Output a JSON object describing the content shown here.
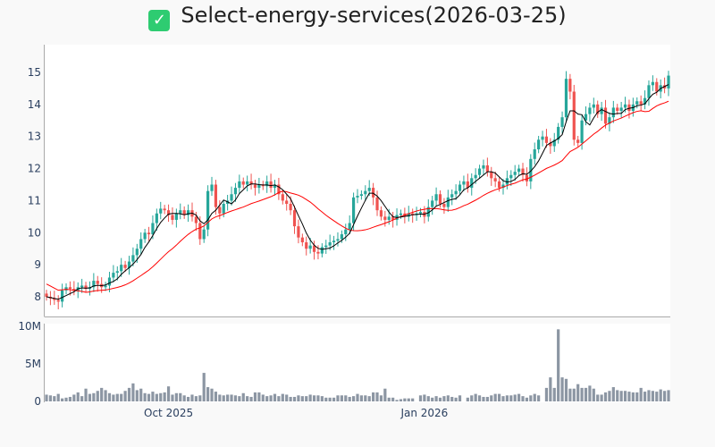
{
  "chart_data": {
    "type": "candlestick",
    "title": "Select-energy-services(2026-03-25)",
    "title_icon": "check-box-icon",
    "colors": {
      "up": "#26a69a",
      "down": "#ef5350",
      "ma_short": "#000000",
      "ma_long": "#ff0000",
      "volume": "#8c96a3"
    },
    "price_axis": {
      "ticks": [
        8,
        9,
        10,
        11,
        12,
        13,
        14,
        15
      ],
      "tick_labels": [
        "8",
        "9",
        "10",
        "11",
        "12",
        "13",
        "14",
        "15"
      ],
      "range": [
        7.4,
        15.9
      ]
    },
    "volume_axis": {
      "ticks": [
        0,
        5,
        10
      ],
      "tick_labels": [
        "0",
        "5M",
        "10M"
      ],
      "range": [
        0,
        10.5
      ],
      "unit": "M"
    },
    "x_ticks": [
      {
        "label": "Oct 2025",
        "index": 31
      },
      {
        "label": "Jan 2026",
        "index": 96
      }
    ],
    "ma_windows": [
      5,
      20
    ],
    "close": [
      8.0,
      7.95,
      7.9,
      7.85,
      8.2,
      8.3,
      8.25,
      8.2,
      8.3,
      8.35,
      8.25,
      8.3,
      8.5,
      8.4,
      8.3,
      8.35,
      8.6,
      8.75,
      8.8,
      9.0,
      8.9,
      9.1,
      9.3,
      9.5,
      9.8,
      10.0,
      9.95,
      10.3,
      10.6,
      10.75,
      10.7,
      10.55,
      10.4,
      10.6,
      10.7,
      10.55,
      10.7,
      10.5,
      10.3,
      9.8,
      10.1,
      11.3,
      11.5,
      10.8,
      10.6,
      10.9,
      11.0,
      11.2,
      11.4,
      11.6,
      11.5,
      11.6,
      11.5,
      11.4,
      11.5,
      11.45,
      11.6,
      11.4,
      11.5,
      11.2,
      11.0,
      10.9,
      10.7,
      10.2,
      9.85,
      9.7,
      9.5,
      9.6,
      9.4,
      9.35,
      9.55,
      9.6,
      9.7,
      9.75,
      9.8,
      9.95,
      10.1,
      10.3,
      11.1,
      11.15,
      11.2,
      11.3,
      11.4,
      11.1,
      10.7,
      10.5,
      10.4,
      10.5,
      10.4,
      10.55,
      10.6,
      10.5,
      10.6,
      10.55,
      10.6,
      10.65,
      10.5,
      10.8,
      11.0,
      11.2,
      10.9,
      10.8,
      11.1,
      11.2,
      11.3,
      11.5,
      11.6,
      11.4,
      11.7,
      11.8,
      12.0,
      12.1,
      11.9,
      11.7,
      11.6,
      11.4,
      11.5,
      11.7,
      11.8,
      11.9,
      12.0,
      11.8,
      11.6,
      12.3,
      12.6,
      12.9,
      13.0,
      12.8,
      12.7,
      12.9,
      13.3,
      13.6,
      14.8,
      14.4,
      12.9,
      12.8,
      13.5,
      13.7,
      13.9,
      14.0,
      13.7,
      13.9,
      13.4,
      13.6,
      13.9,
      13.8,
      13.9,
      14.0,
      13.8,
      14.0,
      14.1,
      14.0,
      14.2,
      14.6,
      14.7,
      14.4,
      14.6,
      14.5,
      14.9
    ],
    "volume": [
      0.9,
      0.8,
      0.7,
      1.0,
      0.4,
      0.5,
      0.6,
      0.9,
      1.2,
      0.7,
      1.7,
      1.0,
      1.1,
      1.4,
      1.8,
      1.5,
      1.1,
      0.9,
      1.0,
      1.0,
      1.4,
      1.8,
      2.4,
      1.5,
      1.7,
      1.1,
      1.0,
      1.3,
      1.0,
      1.1,
      1.2,
      2.0,
      0.9,
      1.1,
      1.1,
      0.8,
      0.6,
      0.9,
      0.7,
      0.8,
      3.8,
      1.9,
      1.7,
      1.3,
      0.9,
      0.8,
      0.9,
      0.9,
      0.8,
      0.7,
      1.1,
      0.7,
      0.6,
      1.2,
      1.2,
      0.9,
      0.7,
      0.8,
      1.0,
      0.7,
      1.0,
      0.9,
      0.6,
      0.6,
      0.8,
      0.7,
      0.7,
      0.9,
      0.8,
      0.8,
      0.7,
      0.5,
      0.5,
      0.5,
      0.8,
      0.8,
      0.8,
      0.6,
      0.7,
      1.0,
      0.8,
      0.8,
      0.7,
      1.2,
      1.2,
      0.8,
      1.7,
      0.5,
      0.5,
      0.2,
      0.3,
      0.4,
      0.4,
      0.4,
      0,
      0.8,
      0.9,
      0.7,
      0.5,
      0.7,
      0.5,
      0.7,
      0.8,
      0.6,
      0.5,
      0.8,
      0,
      0.5,
      0.8,
      1.0,
      0.8,
      0.6,
      0.6,
      0.8,
      1.0,
      1.0,
      0.7,
      0.8,
      0.8,
      0.9,
      1.0,
      0.7,
      0.5,
      0.8,
      1.0,
      0.8,
      0,
      1.8,
      3.2,
      1.8,
      9.6,
      3.2,
      3.0,
      1.7,
      1.7,
      2.3,
      1.8,
      1.8,
      2.1,
      1.7,
      0.9,
      0.9,
      1.2,
      1.4,
      1.9,
      1.5,
      1.4,
      1.4,
      1.3,
      1.2,
      1.2,
      1.8,
      1.3,
      1.5,
      1.4,
      1.3,
      1.6,
      1.4,
      1.5
    ]
  }
}
